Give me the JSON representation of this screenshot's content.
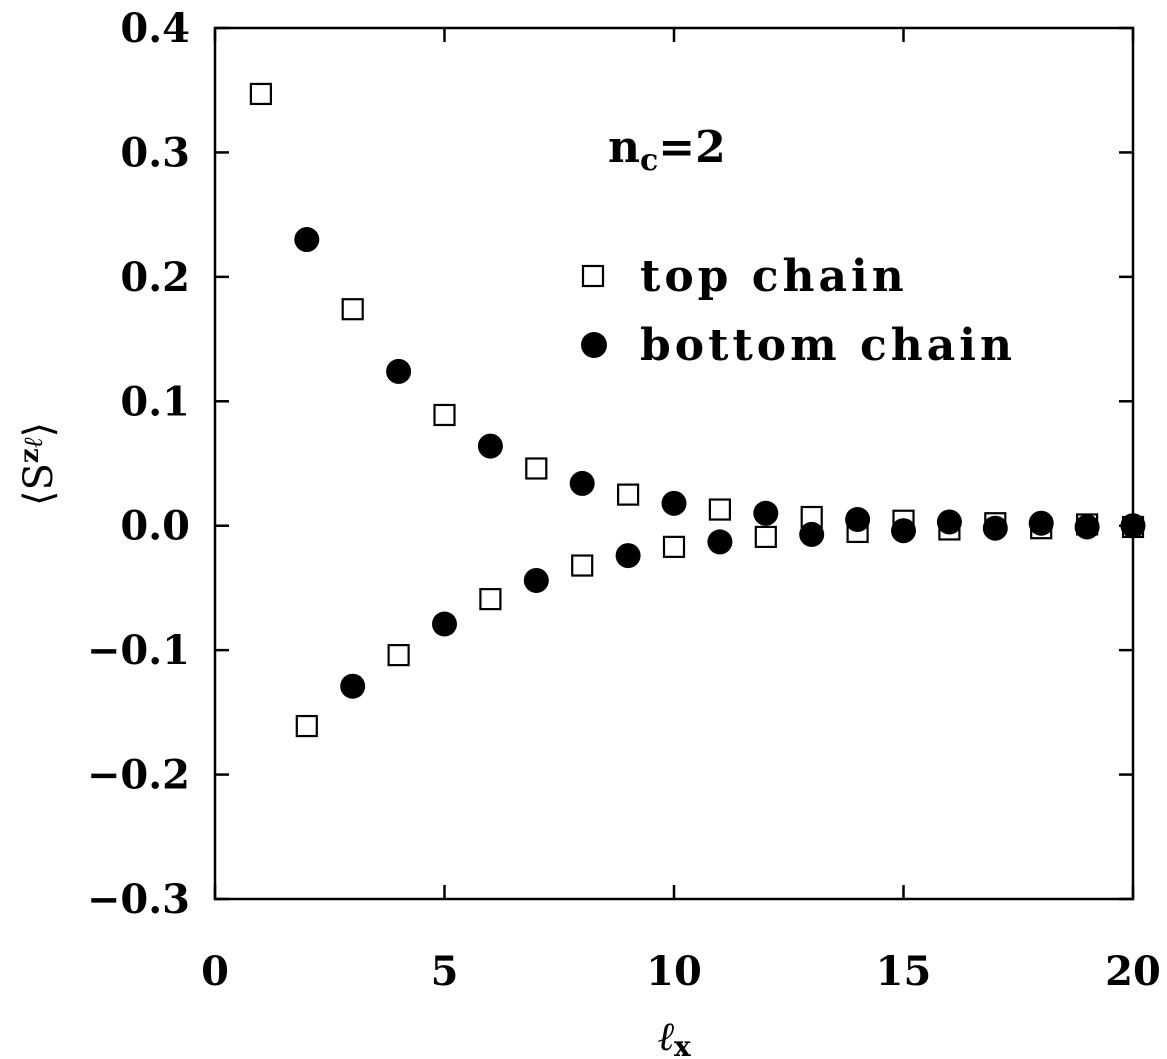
{
  "chart_data": {
    "type": "scatter",
    "xlabel": "ℓx",
    "ylabel": "⟨Szℓ⟩",
    "xlim": [
      0,
      20
    ],
    "ylim": [
      -0.3,
      0.4
    ],
    "x_ticks": [
      0,
      5,
      10,
      15,
      20
    ],
    "x_tick_labels": [
      "0",
      "5",
      "10",
      "15",
      "20"
    ],
    "y_ticks": [
      -0.3,
      -0.2,
      -0.1,
      0.0,
      0.1,
      0.2,
      0.3,
      0.4
    ],
    "y_tick_labels": [
      "−0.3",
      "−0.2",
      "−0.1",
      "0.0",
      "0.1",
      "0.2",
      "0.3",
      "0.4"
    ],
    "grid": false,
    "legend_position": "upper-right",
    "annotation": {
      "base": "n",
      "sub": "c",
      "rest": "=2"
    },
    "series": [
      {
        "name": "top chain",
        "marker": "open-square",
        "color": "#000000",
        "x": [
          1,
          2,
          3,
          4,
          5,
          6,
          7,
          8,
          9,
          10,
          11,
          12,
          13,
          14,
          15,
          16,
          17,
          18,
          19,
          20
        ],
        "y": [
          0.347,
          -0.161,
          0.174,
          -0.104,
          0.089,
          -0.059,
          0.046,
          -0.032,
          0.025,
          -0.017,
          0.013,
          -0.009,
          0.007,
          -0.005,
          0.004,
          -0.003,
          0.002,
          -0.002,
          0.001,
          -0.001
        ]
      },
      {
        "name": "bottom chain",
        "marker": "filled-circle",
        "color": "#000000",
        "x": [
          2,
          3,
          4,
          5,
          6,
          7,
          8,
          9,
          10,
          11,
          12,
          13,
          14,
          15,
          16,
          17,
          18,
          19,
          20
        ],
        "y": [
          0.23,
          -0.129,
          0.124,
          -0.079,
          0.064,
          -0.044,
          0.034,
          -0.024,
          0.018,
          -0.013,
          0.01,
          -0.007,
          0.005,
          -0.004,
          0.003,
          -0.002,
          0.002,
          -0.001,
          0.0
        ]
      }
    ]
  }
}
